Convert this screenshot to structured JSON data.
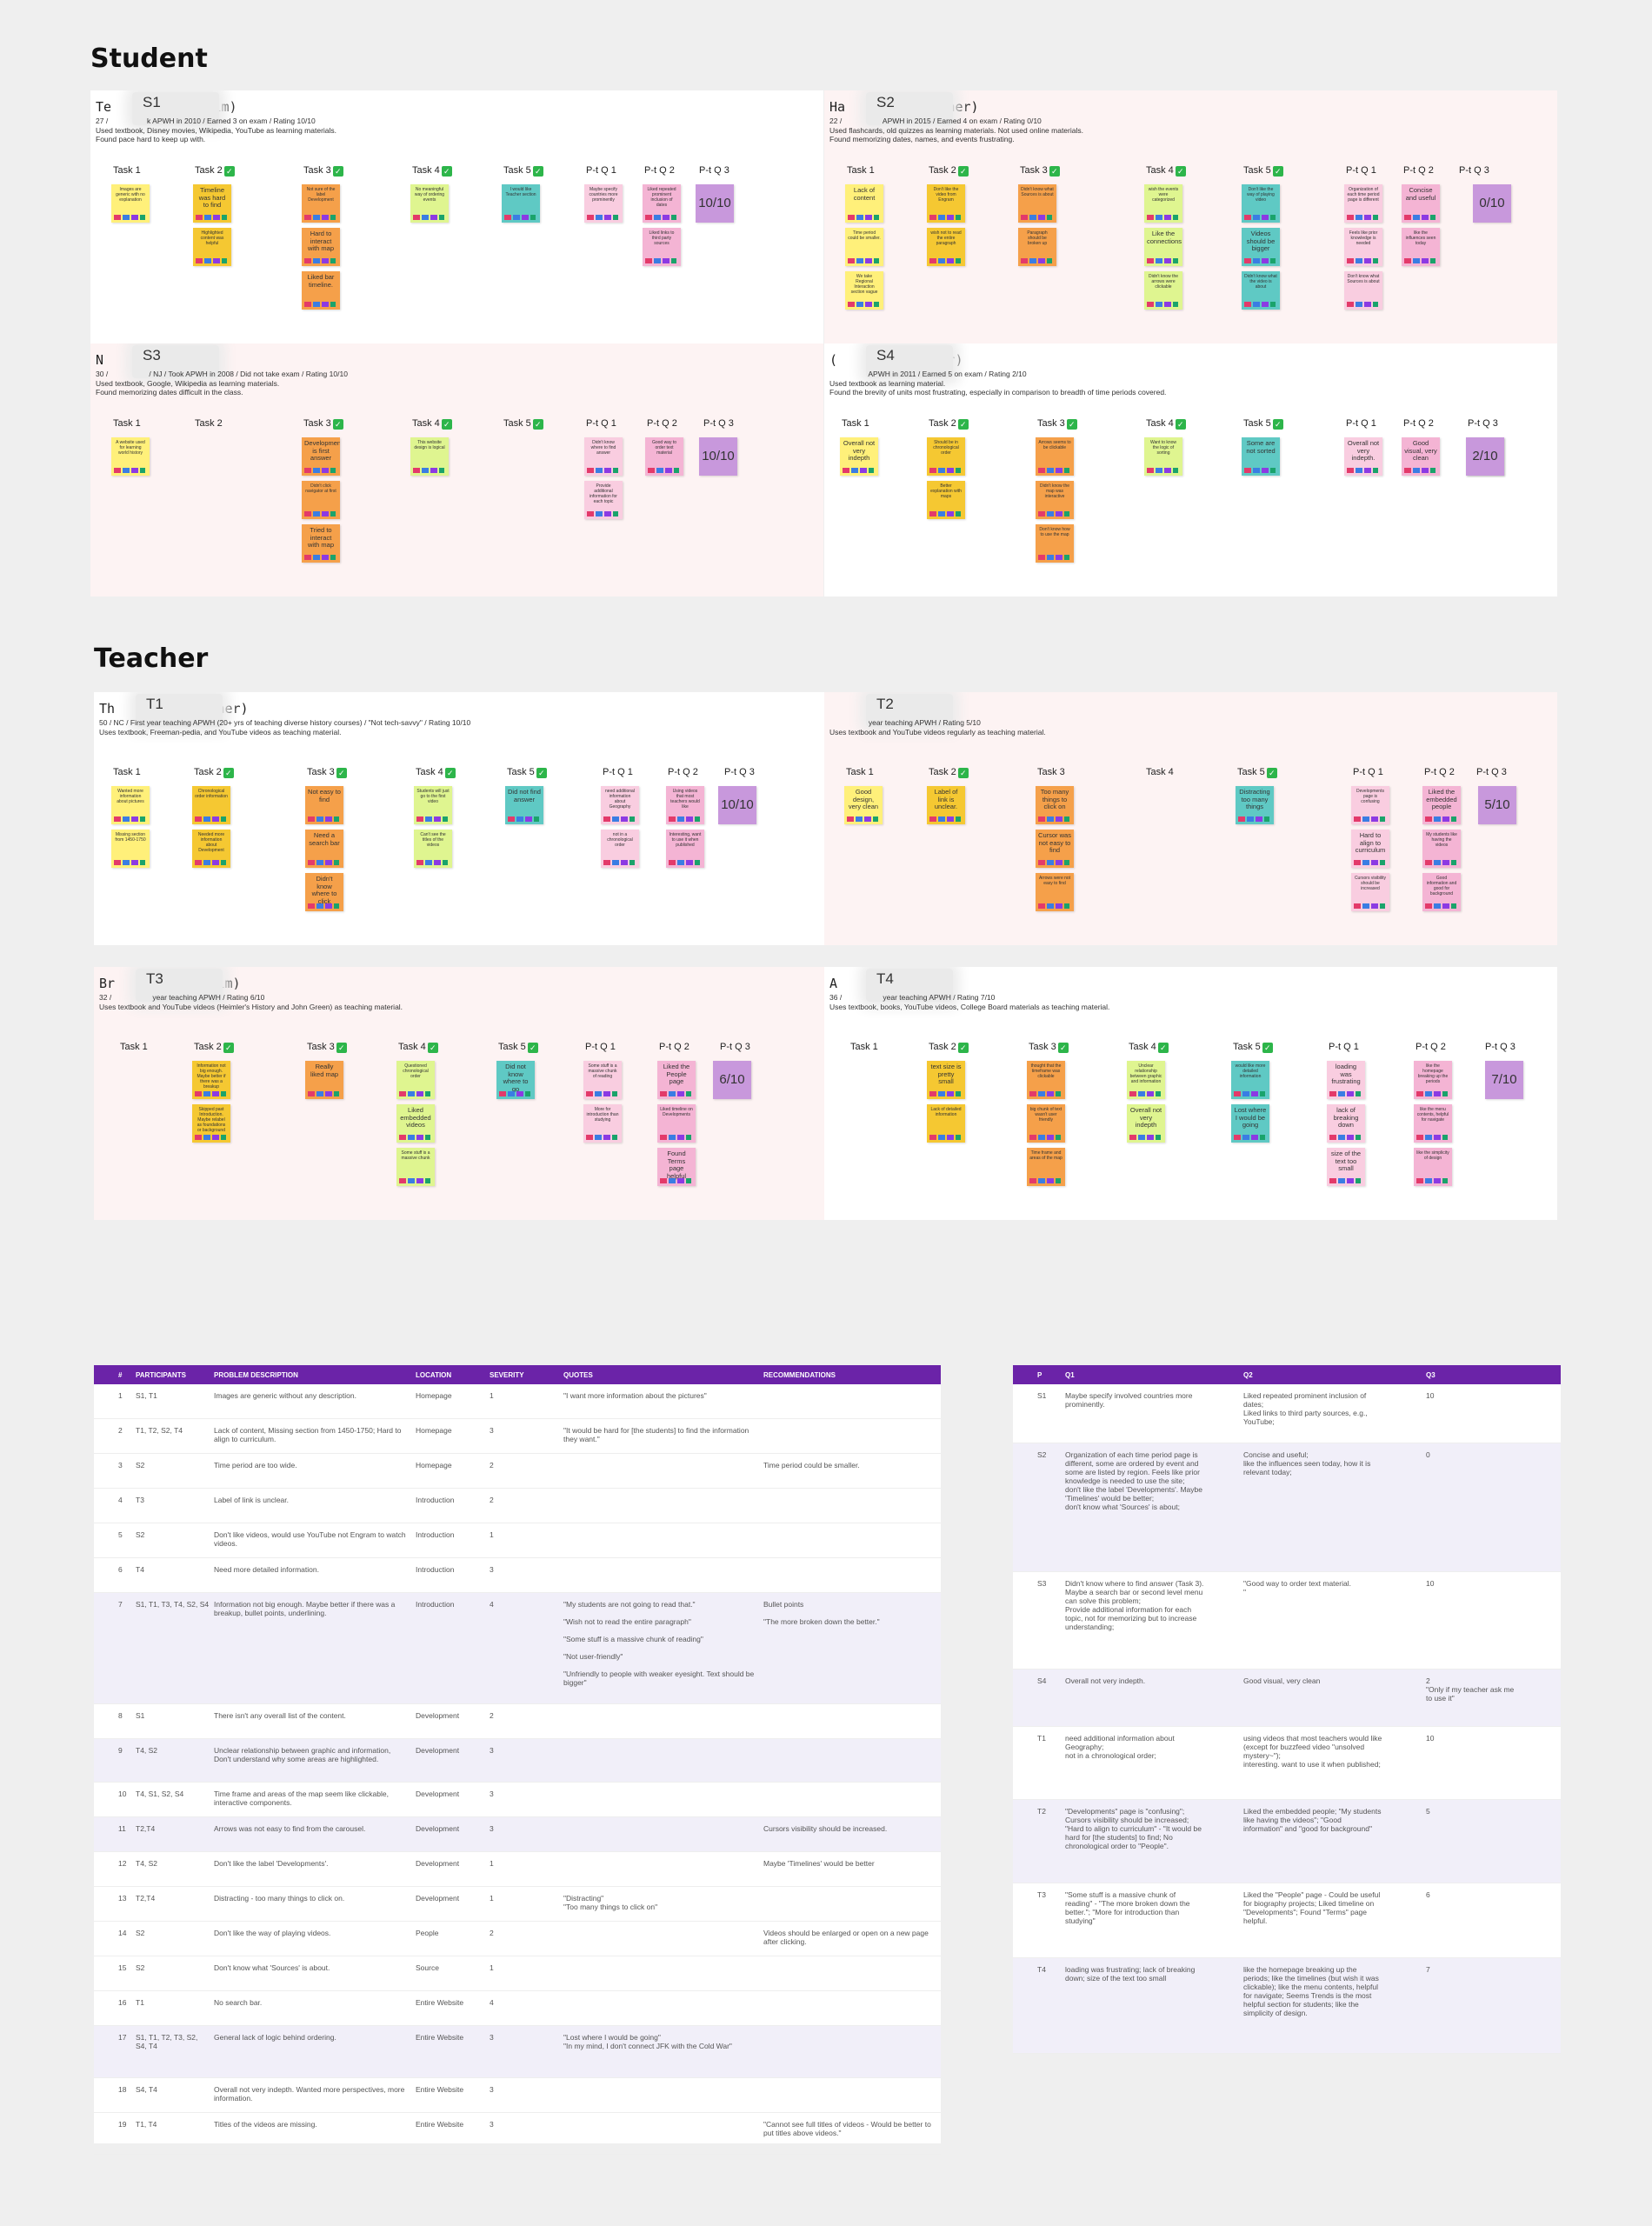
{
  "sections": {
    "student": "Student",
    "teacher": "Teacher"
  },
  "panels": [
    {
      "name": "Te     an (he/him)",
      "code": "S1",
      "info": [
        "27 /      k APWH in 2010 / Earned 3 on exam / Rating 10/10",
        "Used textbook, Disney movies, Wikipedia, YouTube as learning materials.",
        "Found pace hard to keep up with."
      ],
      "tasks": [
        "Task 1",
        "Task 2",
        "Task 3",
        "Task 4",
        "Task 5",
        "P-t Q 1",
        "P-t Q 2",
        "P-t Q 3"
      ],
      "notes": [
        [
          "Images are generic with no explanation"
        ],
        [
          "Timeline was hard to find",
          "Highlighted content was helpful"
        ],
        [
          "Not sure of the label Development",
          "Hard to interact with map",
          "Liked bar timeline."
        ],
        [
          "No meaningful way of ordering events"
        ],
        [
          "I would like Teacher section"
        ],
        [
          "Maybe specify countries more prominently"
        ],
        [
          "Liked repeated prominent inclusion of dates",
          "Liked links to third party sources"
        ],
        []
      ],
      "rating": "10/10"
    },
    {
      "name": "Ha     ez (she/her)",
      "code": "S2",
      "info": [
        "22 /       APWH in 2015 / Earned 4 on exam / Rating 0/10",
        "Used flashcards, old quizzes as learning materials. Not used online materials.",
        "Found memorizing dates, names, and events frustrating."
      ],
      "tasks": [
        "Task 1",
        "Task 2",
        "Task 3",
        "Task 4",
        "Task 5",
        "P-t Q 1",
        "P-t Q 2",
        "P-t Q 3"
      ],
      "notes": [
        [
          "Lack of content",
          "Time period could be smaller.",
          "We take Regional Interaction section vague"
        ],
        [
          "Don't like the video from Engram",
          "wish not to read the entire paragraph"
        ],
        [
          "Didn't know what Sources is about",
          "Paragraph should be broken up"
        ],
        [
          "wish the events were categorized",
          "Like the connections",
          "Didn't know the arrows were clickable"
        ],
        [
          "Don't like the way of playing video",
          "Videos should be bigger",
          "Didn't know what the video is about"
        ],
        [
          "Organization of each time period page is different",
          "Feels like prior knowledge is needed",
          "Don't know what Sources is about"
        ],
        [
          "Concise and useful",
          "like the influences seen today"
        ],
        []
      ],
      "rating": "0/10"
    },
    {
      "name": "N      (she/her)",
      "code": "S3",
      "info": [
        "30 /       / NJ / Took APWH in 2008 / Did not take exam / Rating 10/10",
        "Used textbook, Google, Wikipedia as learning materials.",
        "Found memorizing dates difficult in the class."
      ],
      "tasks": [
        "Task 1",
        "Task 2",
        "Task 3",
        "Task 4",
        "Task 5",
        "P-t Q 1",
        "P-t Q 2",
        "P-t Q 3"
      ],
      "notes": [
        [
          "A website used for learning world history"
        ],
        [],
        [
          "Development is first answer",
          "Didn't click navigator at first",
          "Tried to interact with map"
        ],
        [
          "This website design is logical"
        ],
        [],
        [
          "Didn't know where to find answer",
          "Provide additional information for each topic"
        ],
        [
          "Good way to order text material"
        ],
        []
      ],
      "rating": "10/10"
    },
    {
      "name": "(     t (she/her)",
      "code": "S4",
      "info": [
        "      APWH in 2011 / Earned 5 on exam / Rating 2/10",
        "Used textbook as learning material.",
        "Found the brevity of units most frustrating, especially in comparison to breadth of time periods covered."
      ],
      "tasks": [
        "Task 1",
        "Task 2",
        "Task 3",
        "Task 4",
        "Task 5",
        "P-t Q 1",
        "P-t Q 2",
        "P-t Q 3"
      ],
      "notes": [
        [
          "Overall not very indepth"
        ],
        [
          "Should be in chronological order",
          "Better explanation with maps"
        ],
        [
          "Arrows seems to be clickable",
          "Didn't know the map was interactive",
          "Don't know how to use the map"
        ],
        [
          "Want to know the logic of sorting"
        ],
        [
          "Some are not sorted"
        ],
        [
          "Overall not very indepth."
        ],
        [
          "Good visual, very clean"
        ],
        [
          "Only if my teacher ask me to use it"
        ]
      ],
      "rating": "2/10"
    },
    {
      "name": "Th     ón (she/her)",
      "code": "T1",
      "info": [
        "50 / NC / First year teaching APWH (20+ yrs of teaching diverse history courses) / \"Not tech-savvy\" / Rating 10/10",
        "Uses textbook, Freeman-pedia, and YouTube videos as teaching material."
      ],
      "tasks": [
        "Task 1",
        "Task 2",
        "Task 3",
        "Task 4",
        "Task 5",
        "P-t Q 1",
        "P-t Q 2",
        "P-t Q 3"
      ],
      "notes": [
        [
          "Wanted more information about pictures",
          "Missing section from 1450-1750"
        ],
        [
          "Chronological order information",
          "Needed more information about Development"
        ],
        [
          "Not easy to find",
          "Need a search bar",
          "Didn't know where to click"
        ],
        [
          "Students will just go to the first video",
          "Can't see the titles of the videos"
        ],
        [
          "Did not find answer"
        ],
        [
          "need additional information about Geography",
          "not in a chronological order"
        ],
        [
          "Using videos that most teachers would like",
          "Interesting, want to use it when published"
        ],
        []
      ],
      "rating": "10/10"
    },
    {
      "name": "      (he/him)",
      "code": "T2",
      "info": [
        "      year teaching APWH / Rating 5/10",
        "Uses textbook and YouTube videos regularly as teaching material."
      ],
      "tasks": [
        "Task 1",
        "Task 2",
        "Task 3",
        "Task 4",
        "Task 5",
        "P-t Q 1",
        "P-t Q 2",
        "P-t Q 3"
      ],
      "notes": [
        [
          "Good design, very clean"
        ],
        [
          "Label of link is unclear."
        ],
        [
          "Too many things to click on",
          "Cursor was not easy to find",
          "Arrows were not easy to find"
        ],
        [],
        [
          "Distracting too many things"
        ],
        [
          "Developments page is confusing",
          "Hard to align to curriculum",
          "Cursors visibility should be increased"
        ],
        [
          "Liked the embedded people",
          "My students like having the videos",
          "Good information and good for background"
        ],
        []
      ],
      "rating": "5/10"
    },
    {
      "name": "Br     rt (he/him)",
      "code": "T3",
      "info": [
        "32 /       year teaching APWH / Rating 6/10",
        "Uses textbook and YouTube videos (Heimler's History and John Green) as teaching material."
      ],
      "tasks": [
        "Task 1",
        "Task 2",
        "Task 3",
        "Task 4",
        "Task 5",
        "P-t Q 1",
        "P-t Q 2",
        "P-t Q 3"
      ],
      "notes": [
        [],
        [
          "Information not big enough. Maybe better if there was a breakup",
          "Skipped past Introduction. Maybe relabel as foundations or background"
        ],
        [
          "Really liked map"
        ],
        [
          "Questioned chronological order",
          "Liked embedded videos",
          "Some stuff is a massive chunk"
        ],
        [
          "Did not know where to go"
        ],
        [
          "Some stuff is a massive chunk of reading",
          "More for introduction than studying"
        ],
        [
          "Liked the People page",
          "Liked timeline on Developments",
          "Found Terms page helpful"
        ],
        []
      ],
      "rating": "6/10"
    },
    {
      "name": "A      (she/her)",
      "code": "T4",
      "info": [
        "36 /       year teaching APWH / Rating 7/10",
        "Uses textbook, books, YouTube videos, College Board materials as teaching material."
      ],
      "tasks": [
        "Task 1",
        "Task 2",
        "Task 3",
        "Task 4",
        "Task 5",
        "P-t Q 1",
        "P-t Q 2",
        "P-t Q 3"
      ],
      "notes": [
        [],
        [
          "text size is pretty small",
          "Lack of detailed information"
        ],
        [
          "thought that the timeframe was clickable",
          "big chunk of text wasn't user friendly",
          "Time frame and areas of the map"
        ],
        [
          "Unclear relationship between graphic and information",
          "Overall not very indepth"
        ],
        [
          "would like more detailed information",
          "Lost where I would be going"
        ],
        [
          "loading was frustrating",
          "lack of breaking down",
          "size of the text too small"
        ],
        [
          "like the homepage breaking up the periods",
          "like the menu contents, helpful for navigate",
          "like the simplicity of design"
        ],
        []
      ],
      "rating": "7/10"
    }
  ],
  "problems": {
    "headers": [
      "#",
      "PARTICIPANTS",
      "PROBLEM DESCRIPTION",
      "LOCATION",
      "SEVERITY",
      "QUOTES",
      "RECOMMENDATIONS"
    ],
    "rows": [
      {
        "n": "1",
        "participants": "S1, T1",
        "description": "Images are generic without any description.",
        "location": "Homepage",
        "severity": "1",
        "quotes": "\"I want more information about the pictures\"",
        "recommendations": ""
      },
      {
        "n": "2",
        "participants": "T1, T2, S2, T4",
        "description": "Lack of content, Missing section from 1450-1750; Hard to align to curriculum.",
        "location": "Homepage",
        "severity": "3",
        "quotes": "\"It would be hard for [the students] to find the information they want.\"",
        "recommendations": ""
      },
      {
        "n": "3",
        "participants": "S2",
        "description": "Time period are too wide.",
        "location": "Homepage",
        "severity": "2",
        "quotes": "",
        "recommendations": "Time period could be smaller."
      },
      {
        "n": "4",
        "participants": "T3",
        "description": "Label of link is unclear.",
        "location": "Introduction",
        "severity": "2",
        "quotes": "",
        "recommendations": ""
      },
      {
        "n": "5",
        "participants": "S2",
        "description": "Don't like videos, would use YouTube not Engram to watch videos.",
        "location": "Introduction",
        "severity": "1",
        "quotes": "",
        "recommendations": ""
      },
      {
        "n": "6",
        "participants": "T4",
        "description": "Need more detailed information.",
        "location": "Introduction",
        "severity": "3",
        "quotes": "",
        "recommendations": ""
      },
      {
        "n": "7",
        "participants": "S1, T1, T3, T4, S2, S4",
        "description": "Information not big enough. Maybe better if there was a breakup, bullet points, underlining.",
        "location": "Introduction",
        "severity": "4",
        "quotes": "\"My students are not going to read that.\"\n\n\"Wish not to read the entire paragraph\"\n\n\"Some stuff is a massive chunk of reading\"\n\n\"Not user-friendly\"\n\n\"Unfriendly to people with weaker eyesight. Text should be bigger\"",
        "recommendations": "Bullet points\n\n\"The more broken down the better.\""
      },
      {
        "n": "8",
        "participants": "S1",
        "description": "There isn't any overall list of the content.",
        "location": "Development",
        "severity": "2",
        "quotes": "",
        "recommendations": ""
      },
      {
        "n": "9",
        "participants": "T4, S2",
        "description": "Unclear relationship between graphic and information, Don't understand why some areas are highlighted.",
        "location": "Development",
        "severity": "3",
        "quotes": "",
        "recommendations": ""
      },
      {
        "n": "10",
        "participants": "T4, S1, S2, S4",
        "description": "Time frame and areas of the map seem like clickable, interactive components.",
        "location": "Development",
        "severity": "3",
        "quotes": "",
        "recommendations": ""
      },
      {
        "n": "11",
        "participants": "T2,T4",
        "description": "Arrows was not easy to find from the carousel.",
        "location": "Development",
        "severity": "3",
        "quotes": "",
        "recommendations": "Cursors visibility should be increased."
      },
      {
        "n": "12",
        "participants": "T4, S2",
        "description": "Don't like the label 'Developments'.",
        "location": "Development",
        "severity": "1",
        "quotes": "",
        "recommendations": "Maybe 'Timelines' would be better"
      },
      {
        "n": "13",
        "participants": "T2,T4",
        "description": "Distracting - too many things to click on.",
        "location": "Development",
        "severity": "1",
        "quotes": "\"Distracting\"\n\"Too many things to click on\"",
        "recommendations": ""
      },
      {
        "n": "14",
        "participants": "S2",
        "description": "Don't like the way of playing videos.",
        "location": "People",
        "severity": "2",
        "quotes": "",
        "recommendations": "Videos should be enlarged or open on a new page after clicking."
      },
      {
        "n": "15",
        "participants": "S2",
        "description": "Don't know what 'Sources' is about.",
        "location": "Source",
        "severity": "1",
        "quotes": "",
        "recommendations": ""
      },
      {
        "n": "16",
        "participants": "T1",
        "description": "No search bar.",
        "location": "Entire Website",
        "severity": "4",
        "quotes": "",
        "recommendations": ""
      },
      {
        "n": "17",
        "participants": "S1, T1, T2, T3, S2, S4, T4",
        "description": "General lack of logic behind ordering.",
        "location": "Entire Website",
        "severity": "3",
        "quotes": "\"Lost where I would be going\"\n\"In my mind, I don't connect JFK with the Cold War\"",
        "recommendations": ""
      },
      {
        "n": "18",
        "participants": "S4, T4",
        "description": "Overall not very indepth. Wanted more perspectives, more information.",
        "location": "Entire Website",
        "severity": "3",
        "quotes": "",
        "recommendations": ""
      },
      {
        "n": "19",
        "participants": "T1, T4",
        "description": "Titles of the videos are missing.",
        "location": "Entire Website",
        "severity": "3",
        "quotes": "",
        "recommendations": "\"Cannot see full titles of videos - Would be better to put titles above videos.\""
      }
    ]
  },
  "questions": {
    "headers": [
      "P",
      "Q1",
      "Q2",
      "Q3"
    ],
    "rows": [
      {
        "p": "S1",
        "q1": "Maybe specify involved countries more prominently.",
        "q2": "Liked repeated prominent inclusion of dates;\nLiked links to third party sources, e.g., YouTube;",
        "q3": "10"
      },
      {
        "p": "S2",
        "q1": "Organization of each time period page is different, some are ordered by event and some are listed by region. Feels like prior knowledge is needed to use the site;\ndon't like the label 'Developments'. Maybe 'Timelines' would be better;\ndon't know what 'Sources' is about;",
        "q2": "Concise and useful;\nlike the influences seen today, how it is relevant today;",
        "q3": "0"
      },
      {
        "p": "S3",
        "q1": "Didn't know where to find answer (Task 3). Maybe a search bar or second level menu can solve this problem;\nProvide additional information for each topic, not for memorizing but to increase understanding;",
        "q2": "\"Good way to order text material.\n\"",
        "q3": "10"
      },
      {
        "p": "S4",
        "q1": "Overall not very indepth.",
        "q2": "Good visual, very clean",
        "q3": "2\n\"Only if my teacher ask me to use it\""
      },
      {
        "p": "T1",
        "q1": "need additional information about Geography;\nnot in a chronological order;",
        "q2": "using videos that most teachers would like (except for buzzfeed video \"unsolved mystery~\");\ninteresting. want to use it when published;",
        "q3": "10"
      },
      {
        "p": "T2",
        "q1": "\"Developments\" page is \"confusing\"; Cursors visibility should be increased; \"Hard to align to curriculum\" - \"It would be hard for [the students] to find; No chronological order to \"People\".",
        "q2": "Liked the embedded people; \"My students like having the videos\"; \"Good information\" and \"good for background\"",
        "q3": "5"
      },
      {
        "p": "T3",
        "q1": "\"Some stuff is a massive chunk of reading\" - \"The more broken down the better.\"; \"More for introduction than studying\"",
        "q2": "Liked the \"People\" page - Could be useful for biography projects; Liked timeline on \"Developments\"; Found \"Terms\" page helpful.",
        "q3": "6"
      },
      {
        "p": "T4",
        "q1": "loading was frustrating; lack of breaking down; size of the text too small",
        "q2": "like the homepage breaking up the periods; like the timelines (but wish it was clickable); like the menu contents, helpful for navigate; Seems Trends is the most helpful section for students; like the simplicity of design.",
        "q3": "7"
      }
    ]
  }
}
